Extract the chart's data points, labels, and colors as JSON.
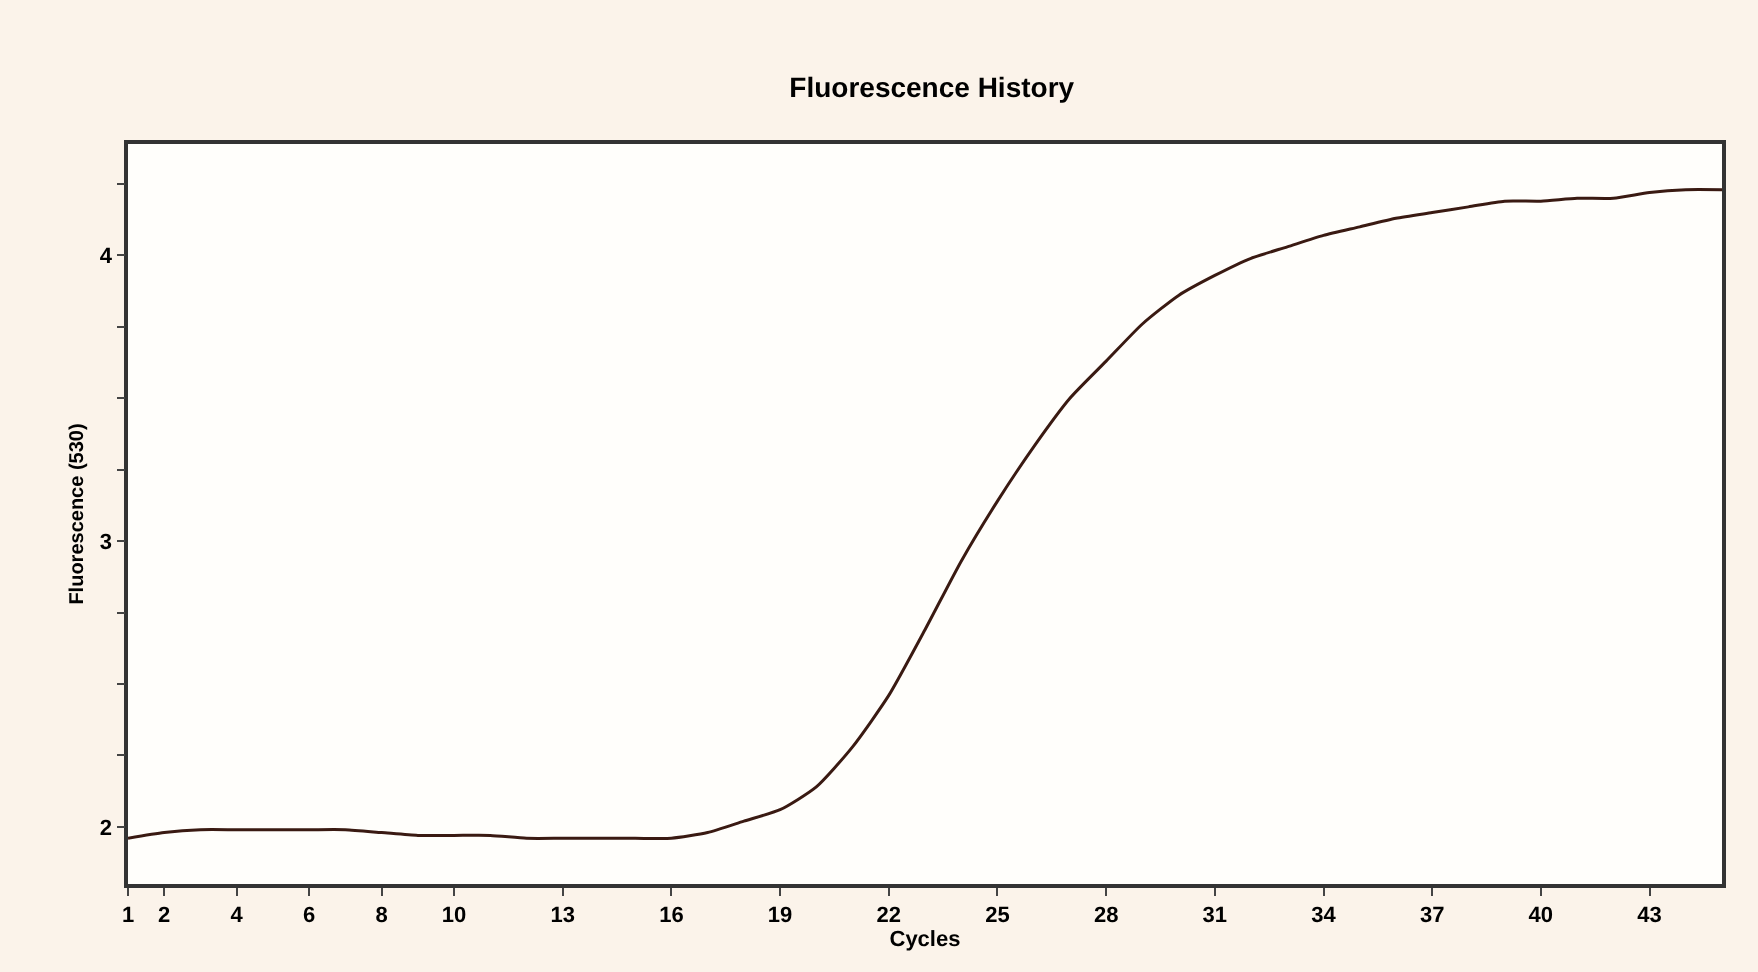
{
  "chart_data": {
    "type": "line",
    "title": "Fluorescence History",
    "xlabel": "Cycles",
    "ylabel": "Fluorescence (530)",
    "x": [
      1,
      2,
      3,
      4,
      5,
      6,
      7,
      8,
      9,
      10,
      11,
      12,
      13,
      14,
      15,
      16,
      17,
      18,
      19,
      20,
      21,
      22,
      23,
      24,
      25,
      26,
      27,
      28,
      29,
      30,
      31,
      32,
      33,
      34,
      35,
      36,
      37,
      38,
      39,
      40,
      41,
      42,
      43,
      44,
      45
    ],
    "series": [
      {
        "color": "#3a1a12",
        "values": [
          1.96,
          1.98,
          1.99,
          1.99,
          1.99,
          1.99,
          1.99,
          1.98,
          1.97,
          1.97,
          1.97,
          1.96,
          1.96,
          1.96,
          1.96,
          1.96,
          1.98,
          2.02,
          2.06,
          2.14,
          2.28,
          2.46,
          2.69,
          2.93,
          3.14,
          3.33,
          3.5,
          3.63,
          3.76,
          3.86,
          3.93,
          3.99,
          4.03,
          4.07,
          4.1,
          4.13,
          4.15,
          4.17,
          4.19,
          4.19,
          4.2,
          4.2,
          4.22,
          4.23,
          4.23
        ]
      }
    ],
    "xlim": [
      1,
      45
    ],
    "xticks": [
      1,
      2,
      4,
      6,
      8,
      10,
      13,
      16,
      19,
      22,
      25,
      28,
      31,
      34,
      37,
      40,
      43
    ],
    "ylim": [
      1.8,
      4.39
    ],
    "yticks": [
      2,
      {
        "value": 2.25,
        "label": null
      },
      {
        "value": 2.5,
        "label": null
      },
      {
        "value": 2.75,
        "label": null
      },
      3,
      {
        "value": 3.25,
        "label": null
      },
      {
        "value": 3.5,
        "label": null
      },
      {
        "value": 3.75,
        "label": null
      },
      4,
      {
        "value": 4.25,
        "label": null
      }
    ],
    "marker": "none",
    "line_style": "solid"
  }
}
